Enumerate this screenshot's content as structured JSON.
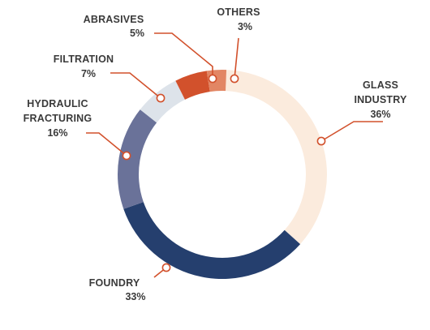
{
  "chart_data": {
    "type": "pie",
    "variant": "donut",
    "slices": [
      {
        "key": "glass",
        "label_lines": [
          "GLASS",
          "INDUSTRY"
        ],
        "value": 36,
        "value_label": "36%",
        "color": "#fbebdd"
      },
      {
        "key": "foundry",
        "label_lines": [
          "FOUNDRY"
        ],
        "value": 33,
        "value_label": "33%",
        "color": "#253f6e"
      },
      {
        "key": "hydraulic",
        "label_lines": [
          "HYDRAULIC",
          "FRACTURING"
        ],
        "value": 16,
        "value_label": "16%",
        "color": "#6a7299"
      },
      {
        "key": "filtration",
        "label_lines": [
          "FILTRATION"
        ],
        "value": 7,
        "value_label": "7%",
        "color": "#dde3ea"
      },
      {
        "key": "abrasives",
        "label_lines": [
          "ABRASIVES"
        ],
        "value": 5,
        "value_label": "5%",
        "color": "#d2512c"
      },
      {
        "key": "others",
        "label_lines": [
          "OTHERS"
        ],
        "value": 3,
        "value_label": "3%",
        "color": "#e28664"
      }
    ],
    "leader_color": "#d2512c",
    "label_color": "#3a3a3a"
  }
}
